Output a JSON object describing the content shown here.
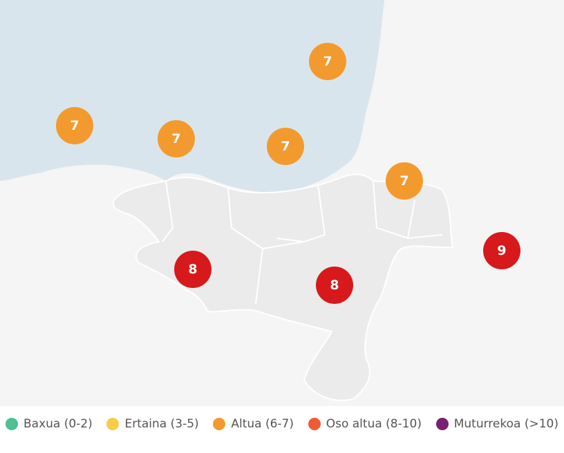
{
  "markers": [
    {
      "value": 7,
      "color": "#f39a2e"
    },
    {
      "value": 7,
      "color": "#f39a2e"
    },
    {
      "value": 7,
      "color": "#f39a2e"
    },
    {
      "value": 7,
      "color": "#f39a2e"
    },
    {
      "value": 7,
      "color": "#f39a2e"
    },
    {
      "value": 8,
      "color": "#d7191c"
    },
    {
      "value": 8,
      "color": "#d7191c"
    },
    {
      "value": 9,
      "color": "#d7191c"
    }
  ],
  "legend": [
    {
      "label": "Baxua (0-2)",
      "color": "#4fbf94"
    },
    {
      "label": "Ertaina (3-5)",
      "color": "#f9cc45"
    },
    {
      "label": "Altua (6-7)",
      "color": "#f39a2e"
    },
    {
      "label": "Oso altua (8-10)",
      "color": "#f05a35"
    },
    {
      "label": "Muturrekoa (>10)",
      "color": "#7a1f73"
    }
  ]
}
